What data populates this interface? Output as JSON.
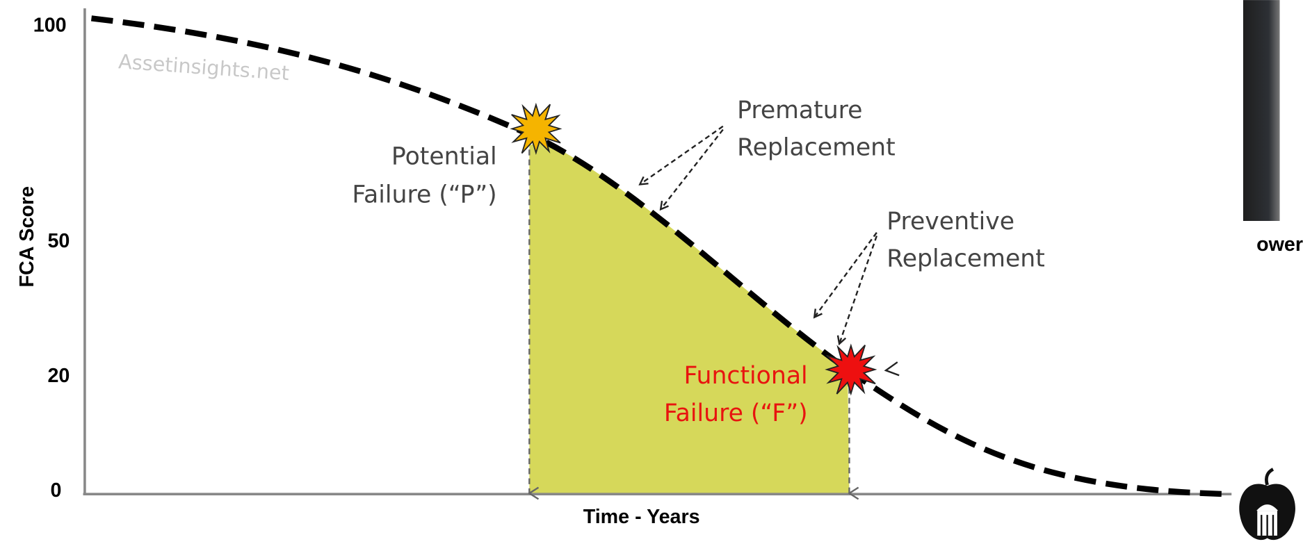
{
  "y_axis": {
    "label": "FCA Score",
    "ticks": [
      "100",
      "50",
      "20",
      "0"
    ]
  },
  "x_axis": {
    "label": "Time - Years"
  },
  "watermark": "Assetinsights.net",
  "annotations": {
    "potential_failure": [
      "Potential",
      "Failure (“P”)"
    ],
    "premature_replacement": [
      "Premature",
      "Replacement"
    ],
    "preventive_replacement": [
      "Preventive",
      "Replacement"
    ],
    "functional_failure": [
      "Functional",
      "Failure (“F”)"
    ]
  },
  "clipped_caption": "ower"
}
